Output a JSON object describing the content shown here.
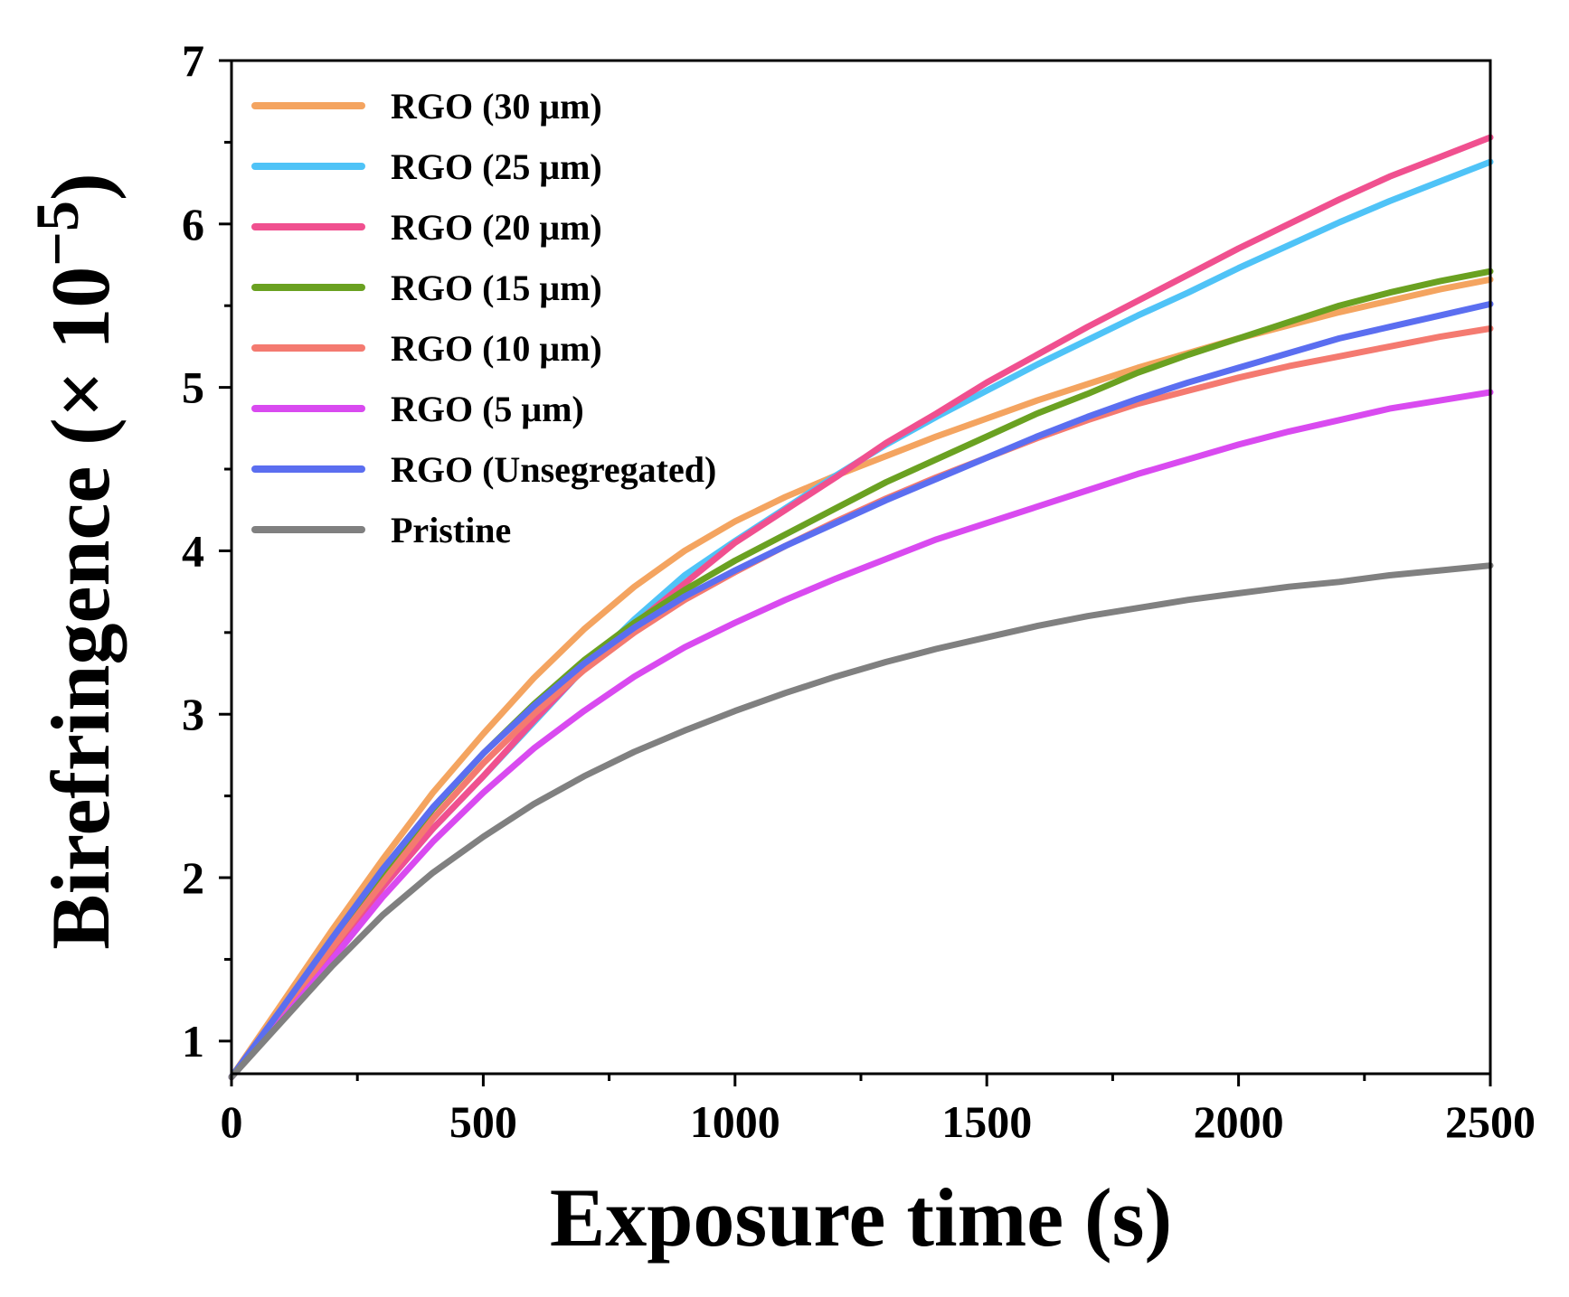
{
  "chart_data": {
    "type": "line",
    "title": "",
    "xlabel": "Exposure time (s)",
    "ylabel": {
      "main": "Birefringence (× 10",
      "exponent": "−5",
      "close": ")"
    },
    "xlim": [
      0,
      2500
    ],
    "ylim": [
      0.8,
      7
    ],
    "xticks": [
      0,
      500,
      1000,
      1500,
      2000,
      2500
    ],
    "xtick_labels": [
      "0",
      "500",
      "1000",
      "1500",
      "2000",
      "2500"
    ],
    "yticks": [
      1,
      2,
      3,
      4,
      5,
      6,
      7
    ],
    "ytick_labels": [
      "1",
      "2",
      "3",
      "4",
      "5",
      "6",
      "7"
    ],
    "grid": false,
    "legend_position": "top-left",
    "x": [
      0,
      100,
      200,
      300,
      400,
      500,
      600,
      700,
      800,
      900,
      1000,
      1100,
      1200,
      1300,
      1400,
      1500,
      1600,
      1700,
      1800,
      1900,
      2000,
      2100,
      2200,
      2300,
      2400,
      2500
    ],
    "series": [
      {
        "name": "RGO (30 μm)",
        "color": "#F4A460",
        "values": [
          0.78,
          1.23,
          1.68,
          2.11,
          2.52,
          2.88,
          3.22,
          3.52,
          3.78,
          4.0,
          4.18,
          4.33,
          4.46,
          4.58,
          4.7,
          4.81,
          4.92,
          5.02,
          5.12,
          5.21,
          5.3,
          5.38,
          5.46,
          5.53,
          5.6,
          5.66
        ]
      },
      {
        "name": "RGO (25 μm)",
        "color": "#4FC3F7",
        "values": [
          0.78,
          1.16,
          1.55,
          1.94,
          2.3,
          2.62,
          2.95,
          3.28,
          3.58,
          3.85,
          4.06,
          4.26,
          4.46,
          4.65,
          4.82,
          4.98,
          5.14,
          5.29,
          5.44,
          5.58,
          5.73,
          5.87,
          6.01,
          6.14,
          6.26,
          6.38
        ]
      },
      {
        "name": "RGO (20 μm)",
        "color": "#F0508F",
        "values": [
          0.78,
          1.16,
          1.55,
          1.94,
          2.3,
          2.62,
          2.96,
          3.28,
          3.55,
          3.8,
          4.05,
          4.25,
          4.45,
          4.66,
          4.84,
          5.03,
          5.2,
          5.37,
          5.53,
          5.69,
          5.85,
          6.0,
          6.15,
          6.29,
          6.41,
          6.53
        ]
      },
      {
        "name": "RGO (15 μm)",
        "color": "#6AA121",
        "values": [
          0.78,
          1.19,
          1.61,
          2.03,
          2.42,
          2.76,
          3.06,
          3.33,
          3.56,
          3.76,
          3.94,
          4.1,
          4.26,
          4.42,
          4.56,
          4.7,
          4.84,
          4.96,
          5.09,
          5.2,
          5.3,
          5.4,
          5.5,
          5.58,
          5.65,
          5.71
        ]
      },
      {
        "name": "RGO (10 μm)",
        "color": "#F47A70",
        "values": [
          0.78,
          1.17,
          1.57,
          1.97,
          2.36,
          2.7,
          3.0,
          3.27,
          3.5,
          3.7,
          3.87,
          4.03,
          4.18,
          4.32,
          4.45,
          4.57,
          4.69,
          4.8,
          4.9,
          4.98,
          5.06,
          5.13,
          5.19,
          5.25,
          5.31,
          5.36
        ]
      },
      {
        "name": "RGO (5 μm)",
        "color": "#D94AF0",
        "values": [
          0.78,
          1.13,
          1.5,
          1.88,
          2.22,
          2.52,
          2.79,
          3.02,
          3.23,
          3.41,
          3.56,
          3.7,
          3.83,
          3.95,
          4.07,
          4.17,
          4.27,
          4.37,
          4.47,
          4.56,
          4.65,
          4.73,
          4.8,
          4.87,
          4.92,
          4.97
        ]
      },
      {
        "name": "RGO (Unsegregated)",
        "color": "#5B6EF0",
        "values": [
          0.78,
          1.2,
          1.63,
          2.05,
          2.43,
          2.76,
          3.05,
          3.31,
          3.53,
          3.72,
          3.88,
          4.03,
          4.17,
          4.31,
          4.44,
          4.57,
          4.7,
          4.82,
          4.93,
          5.03,
          5.12,
          5.21,
          5.3,
          5.37,
          5.44,
          5.51
        ]
      },
      {
        "name": "Pristine",
        "color": "#808080",
        "values": [
          0.78,
          1.12,
          1.46,
          1.77,
          2.03,
          2.25,
          2.45,
          2.62,
          2.77,
          2.9,
          3.02,
          3.13,
          3.23,
          3.32,
          3.4,
          3.47,
          3.54,
          3.6,
          3.65,
          3.7,
          3.74,
          3.78,
          3.81,
          3.85,
          3.88,
          3.91
        ]
      }
    ]
  }
}
